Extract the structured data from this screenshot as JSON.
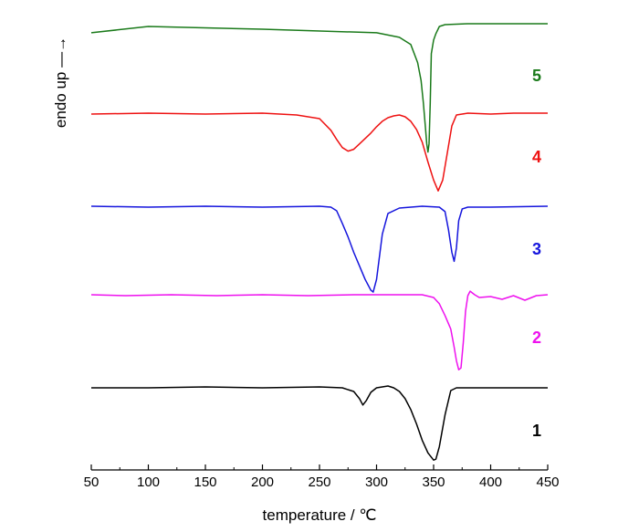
{
  "chart_data": {
    "type": "line",
    "xlabel": "temperature / ℃",
    "ylabel": "endo up —→",
    "xlim": [
      50,
      450
    ],
    "xticks": [
      50,
      100,
      150,
      200,
      250,
      300,
      350,
      400,
      450
    ],
    "grid": false,
    "legend": "none (curves labelled directly)",
    "series": [
      {
        "name": "5",
        "color": "#1a7a1a",
        "x": [
          50,
          100,
          200,
          300,
          320,
          330,
          336,
          339,
          341,
          343,
          344,
          345,
          346,
          347,
          348,
          350,
          352,
          355,
          360,
          380,
          420,
          450
        ],
        "y": [
          4.93,
          5.0,
          4.97,
          4.93,
          4.88,
          4.8,
          4.6,
          4.4,
          4.15,
          3.85,
          3.7,
          3.61,
          3.7,
          4.15,
          4.7,
          4.85,
          4.92,
          5.0,
          5.02,
          5.03,
          5.03,
          5.03
        ]
      },
      {
        "name": "4",
        "color": "#ee1111",
        "x": [
          50,
          100,
          150,
          200,
          230,
          250,
          260,
          265,
          270,
          275,
          280,
          285,
          290,
          295,
          300,
          305,
          310,
          315,
          320,
          325,
          330,
          335,
          340,
          345,
          350,
          354,
          358,
          362,
          366,
          370,
          375,
          380,
          400,
          420,
          450
        ],
        "y": [
          4.03,
          4.04,
          4.03,
          4.04,
          4.02,
          3.98,
          3.85,
          3.75,
          3.66,
          3.62,
          3.64,
          3.7,
          3.76,
          3.82,
          3.89,
          3.95,
          3.99,
          4.01,
          4.02,
          4.0,
          3.95,
          3.86,
          3.72,
          3.5,
          3.3,
          3.18,
          3.3,
          3.6,
          3.9,
          4.02,
          4.03,
          4.04,
          4.03,
          4.04,
          4.04
        ]
      },
      {
        "name": "3",
        "color": "#1515dd",
        "x": [
          50,
          100,
          150,
          200,
          250,
          260,
          265,
          270,
          275,
          280,
          285,
          290,
          295,
          297,
          300,
          305,
          310,
          320,
          330,
          340,
          355,
          360,
          363,
          366,
          368,
          370,
          372,
          375,
          380,
          400,
          450
        ],
        "y": [
          3.01,
          3.0,
          3.01,
          3.0,
          3.01,
          3.0,
          2.96,
          2.82,
          2.67,
          2.5,
          2.35,
          2.2,
          2.08,
          2.06,
          2.2,
          2.7,
          2.93,
          2.99,
          3.0,
          3.01,
          3.0,
          2.95,
          2.75,
          2.5,
          2.4,
          2.55,
          2.85,
          2.98,
          3.0,
          3.0,
          3.01
        ]
      },
      {
        "name": "2",
        "color": "#ee11ee",
        "x": [
          50,
          80,
          120,
          160,
          200,
          240,
          280,
          320,
          340,
          350,
          355,
          360,
          365,
          368,
          370,
          372,
          374,
          376,
          378,
          380,
          382,
          386,
          390,
          400,
          410,
          420,
          430,
          440,
          450
        ],
        "y": [
          2.03,
          2.02,
          2.03,
          2.02,
          2.03,
          2.02,
          2.03,
          2.03,
          2.03,
          2.0,
          1.93,
          1.8,
          1.65,
          1.45,
          1.3,
          1.2,
          1.22,
          1.5,
          1.85,
          2.02,
          2.07,
          2.03,
          2.0,
          2.01,
          1.98,
          2.02,
          1.97,
          2.02,
          2.03
        ]
      },
      {
        "name": "1",
        "color": "#000000",
        "x": [
          50,
          100,
          150,
          200,
          250,
          270,
          280,
          285,
          288,
          291,
          295,
          300,
          305,
          310,
          315,
          320,
          325,
          330,
          335,
          340,
          345,
          350,
          352,
          355,
          360,
          365,
          370,
          380,
          400,
          450
        ],
        "y": [
          1.0,
          1.0,
          1.01,
          1.0,
          1.01,
          1.0,
          0.96,
          0.88,
          0.81,
          0.86,
          0.95,
          1.0,
          1.01,
          1.02,
          1.0,
          0.96,
          0.88,
          0.76,
          0.6,
          0.42,
          0.28,
          0.2,
          0.21,
          0.35,
          0.7,
          0.97,
          1.0,
          1.0,
          1.0,
          1.0
        ]
      }
    ]
  }
}
